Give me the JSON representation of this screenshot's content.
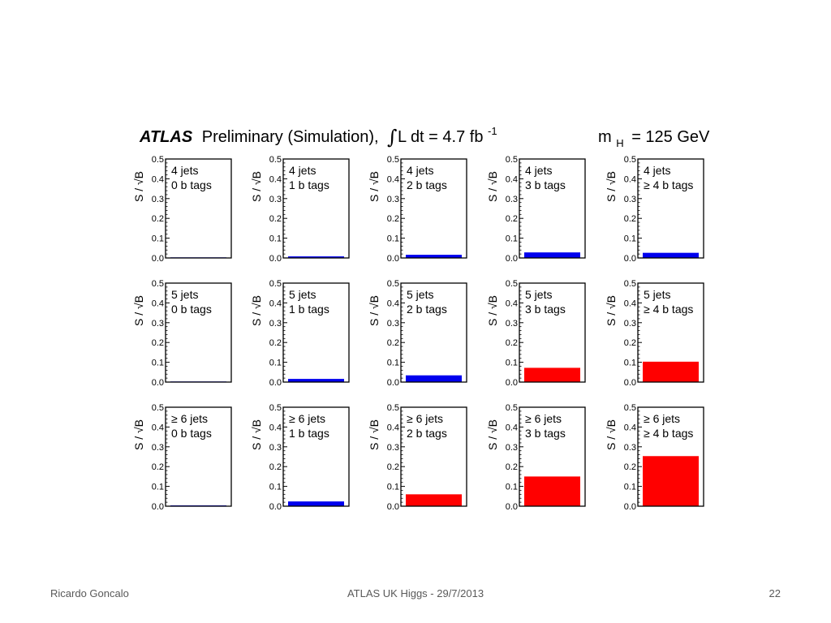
{
  "title": {
    "experiment": "ATLAS",
    "label": "Preliminary (Simulation),",
    "lumi": "L dt = 4.7 fb",
    "lumi_exp": "-1",
    "mass": "m",
    "mass_sub": "H",
    "mass_value": "= 125 GeV"
  },
  "chart_data": {
    "type": "bar",
    "ylabel": "S / √B",
    "ylim": [
      0,
      0.5
    ],
    "yticks": [
      "0.0",
      "0.1",
      "0.2",
      "0.3",
      "0.4",
      "0.5"
    ],
    "grid": false,
    "colors": {
      "low": "#0000ee",
      "high": "#ff0000",
      "frame": "#000000"
    },
    "panels": [
      {
        "jets": "4 jets",
        "tags": "0 b tags",
        "value": 0.003,
        "color": "#0000ee"
      },
      {
        "jets": "4 jets",
        "tags": "1 b tags",
        "value": 0.008,
        "color": "#0000ee"
      },
      {
        "jets": "4 jets",
        "tags": "2 b tags",
        "value": 0.016,
        "color": "#0000ee"
      },
      {
        "jets": "4 jets",
        "tags": "3 b tags",
        "value": 0.028,
        "color": "#0000ee"
      },
      {
        "jets": "4 jets",
        "tags": "≥ 4 b tags",
        "value": 0.026,
        "color": "#0000ee"
      },
      {
        "jets": "5 jets",
        "tags": "0 b tags",
        "value": 0.003,
        "color": "#0000ee"
      },
      {
        "jets": "5 jets",
        "tags": "1 b tags",
        "value": 0.016,
        "color": "#0000ee"
      },
      {
        "jets": "5 jets",
        "tags": "2 b tags",
        "value": 0.034,
        "color": "#0000ee"
      },
      {
        "jets": "5 jets",
        "tags": "3 b tags",
        "value": 0.072,
        "color": "#ff0000"
      },
      {
        "jets": "5 jets",
        "tags": "≥ 4 b tags",
        "value": 0.103,
        "color": "#ff0000"
      },
      {
        "jets": "≥ 6 jets",
        "tags": "0 b tags",
        "value": 0.004,
        "color": "#0000ee"
      },
      {
        "jets": "≥ 6 jets",
        "tags": "1 b tags",
        "value": 0.024,
        "color": "#0000ee"
      },
      {
        "jets": "≥ 6 jets",
        "tags": "2 b tags",
        "value": 0.06,
        "color": "#ff0000"
      },
      {
        "jets": "≥ 6 jets",
        "tags": "3 b tags",
        "value": 0.15,
        "color": "#ff0000"
      },
      {
        "jets": "≥ 6 jets",
        "tags": "≥ 4 b tags",
        "value": 0.253,
        "color": "#ff0000"
      }
    ]
  },
  "footer": {
    "author": "Ricardo Goncalo",
    "event": "ATLAS UK Higgs - 29/7/2013",
    "page": "22"
  }
}
